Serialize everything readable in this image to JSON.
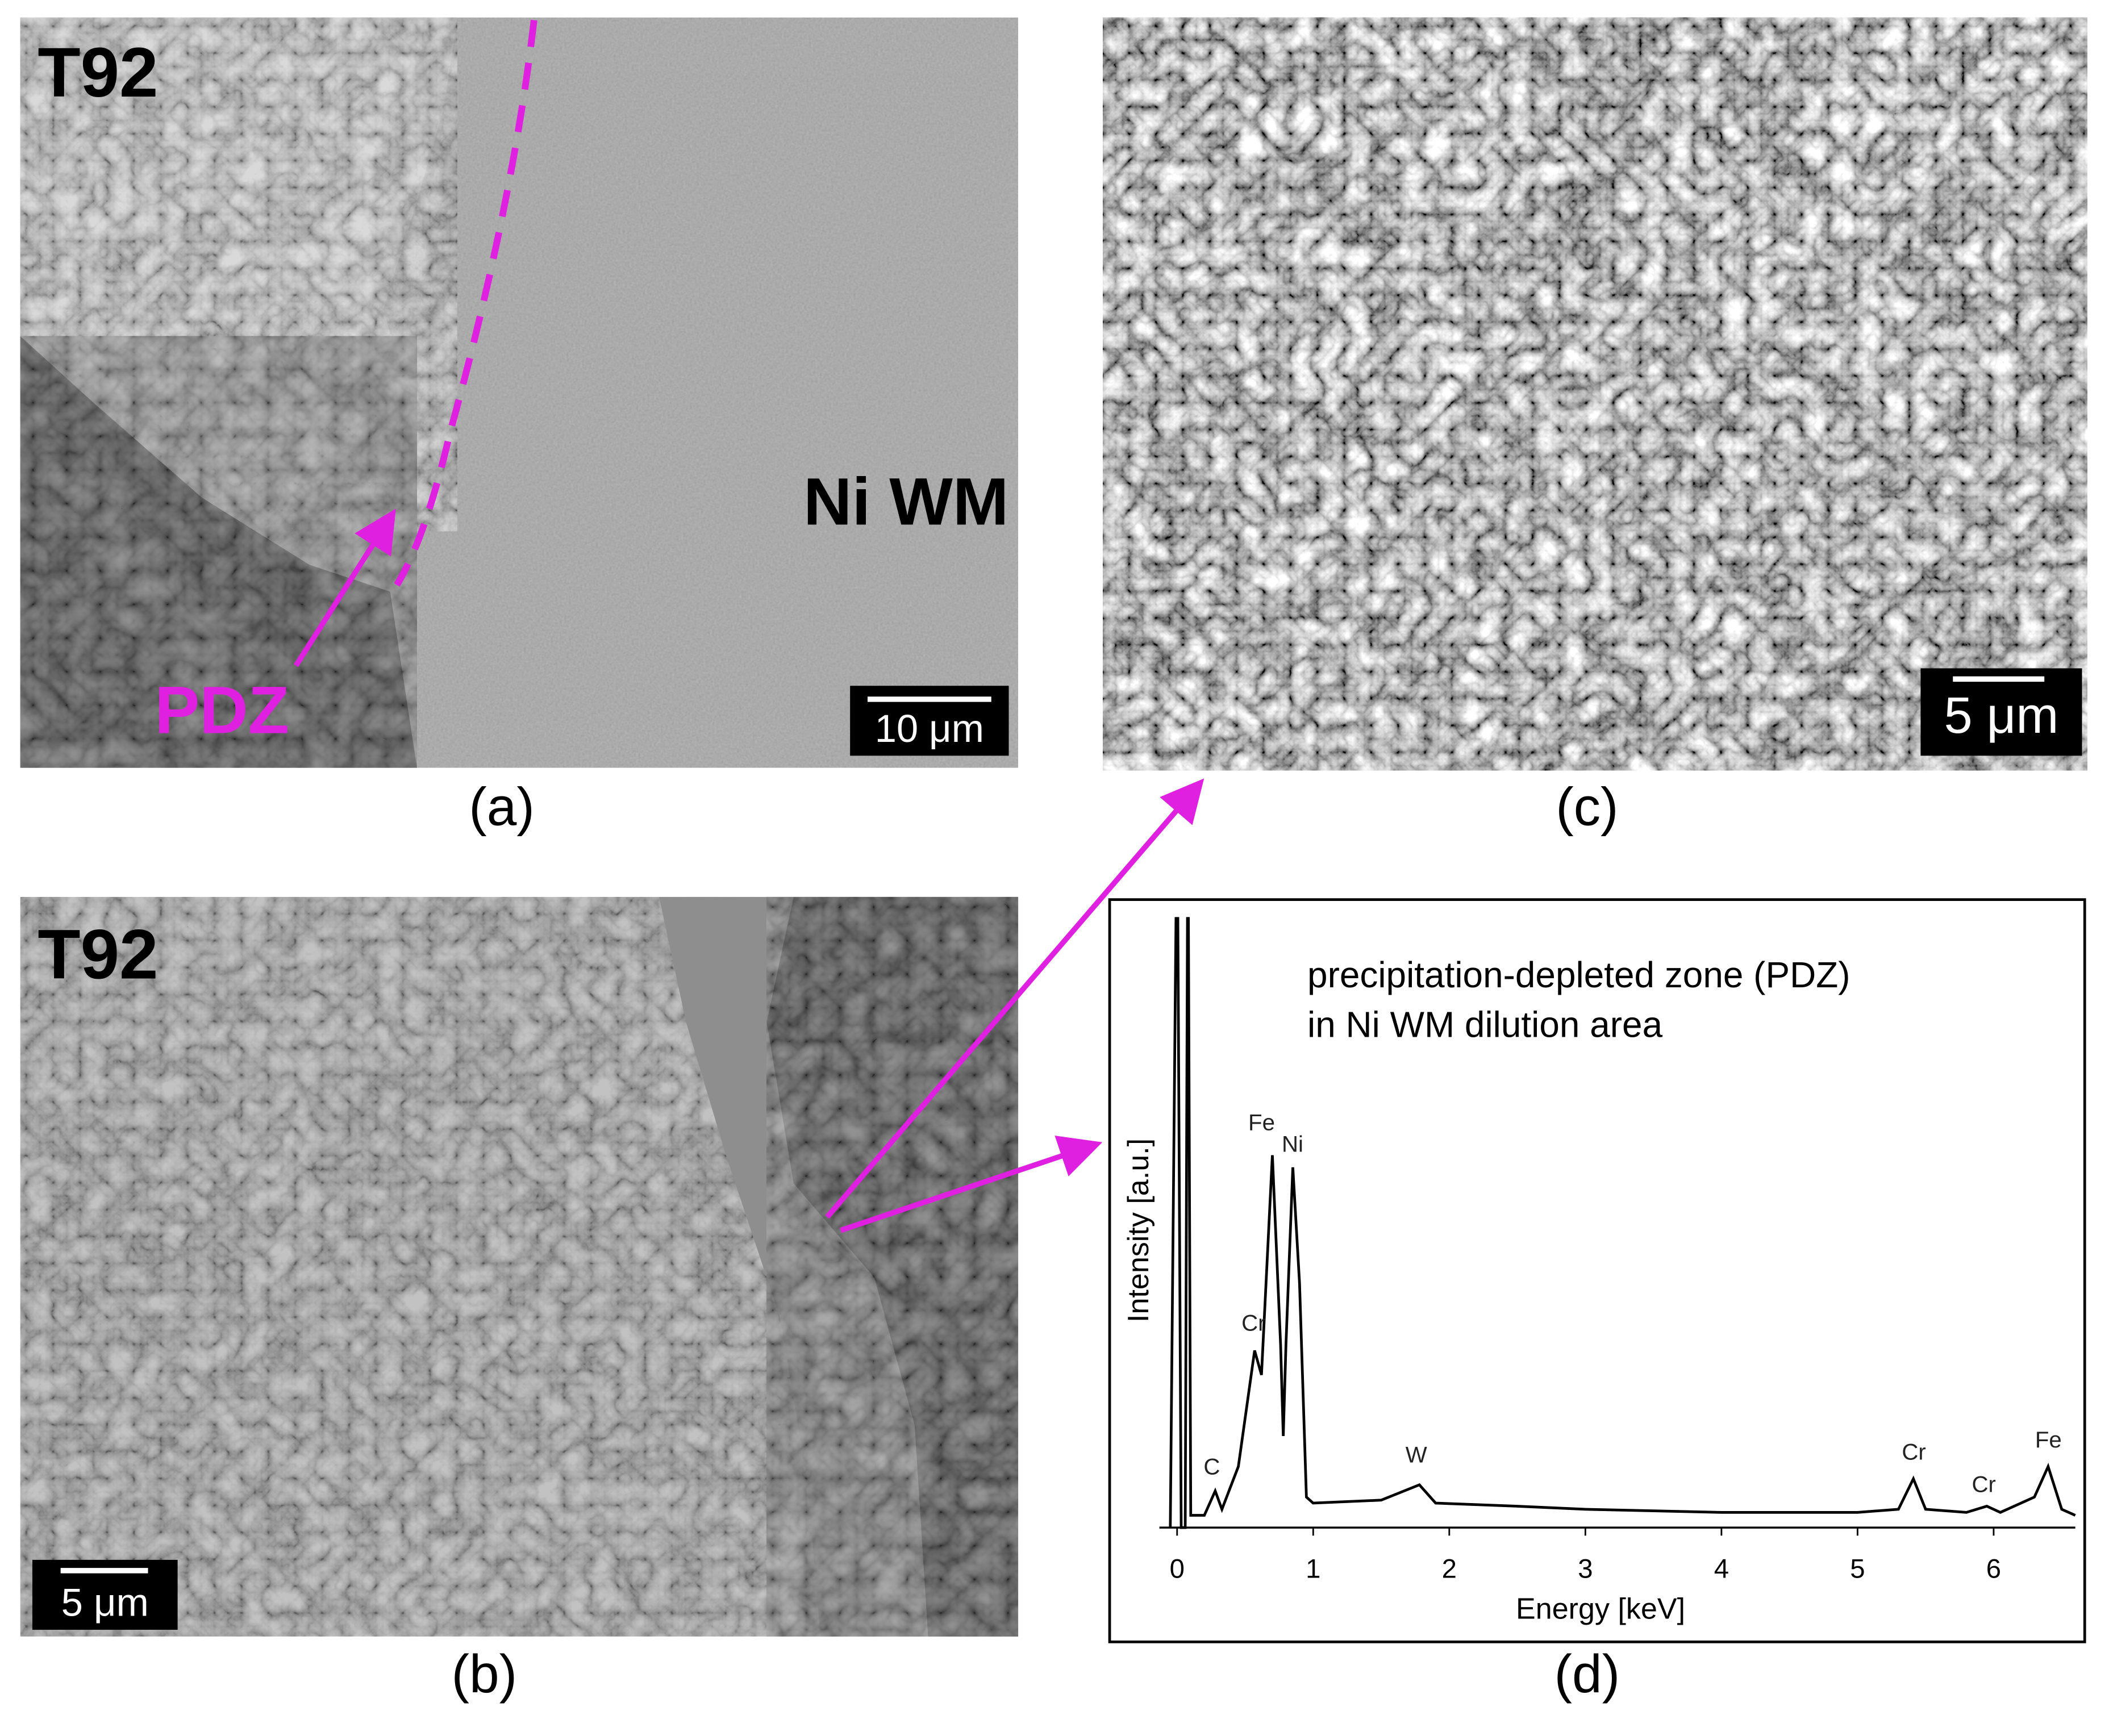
{
  "panels": {
    "a": {
      "label": "(a)",
      "material": "T92",
      "region": "Ni WM",
      "zone": "PDZ",
      "scale_bar": "10 μm"
    },
    "b": {
      "label": "(b)",
      "material": "T92",
      "scale_bar": "5 μm"
    },
    "c": {
      "label": "(c)",
      "scale_bar": "5 μm"
    },
    "d": {
      "label": "(d)"
    }
  },
  "chart_data": {
    "type": "line",
    "annotation": [
      "precipitation-depleted zone (PDZ)",
      "in Ni WM dilution area"
    ],
    "x_label": "Energy [keV]",
    "y_label": "Intensity [a.u.]",
    "x": [
      -0.05,
      0,
      0.03,
      0.06,
      0.08,
      0.1,
      0.2,
      0.28,
      0.33,
      0.45,
      0.57,
      0.62,
      0.7,
      0.76,
      0.78,
      0.8,
      0.85,
      0.9,
      0.95,
      1.0,
      1.5,
      1.78,
      1.9,
      2.5,
      3,
      4,
      5,
      5.3,
      5.41,
      5.5,
      5.8,
      5.95,
      6.05,
      6.3,
      6.4,
      6.5,
      6.6
    ],
    "series": [
      {
        "color": "#000000",
        "values": [
          0,
          120,
          0,
          0,
          120,
          2,
          2,
          6,
          3,
          10,
          29,
          25,
          61,
          30,
          15,
          30,
          59,
          40,
          5,
          4,
          4.5,
          7,
          4,
          3.5,
          3,
          2.5,
          2.5,
          3,
          8,
          3,
          2.5,
          3.5,
          2.5,
          5,
          10,
          3,
          2
        ]
      }
    ],
    "peak_labels": [
      "C",
      "Cr",
      "Fe",
      "Ni",
      "W",
      "Cr",
      "Cr",
      "Fe"
    ],
    "xlim": [
      -0.13,
      6.6
    ],
    "ylim": [
      0,
      100
    ],
    "xticks": [
      0,
      1,
      2,
      3,
      4,
      5,
      6
    ],
    "grid": false
  }
}
